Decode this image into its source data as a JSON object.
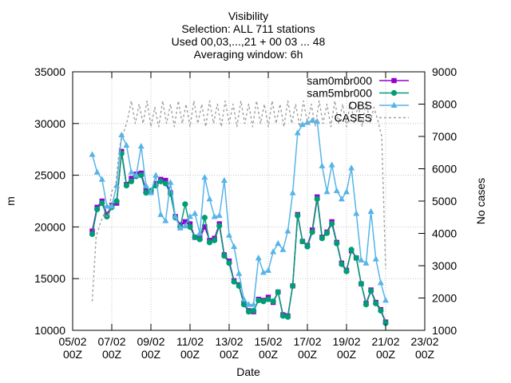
{
  "chart_data": {
    "type": "line",
    "title_lines": [
      "Visibility",
      "Selection: ALL     711 stations",
      "Used 00,03,...,21 + 00 03 ... 48",
      "Averaging window:  6h"
    ],
    "xlabel": "Date",
    "ylabel": "m",
    "y2label": "No cases",
    "xlim": [
      0,
      18
    ],
    "ylim": [
      10000,
      35000
    ],
    "y2lim": [
      1000,
      9000
    ],
    "grid": true,
    "legend_position": "top-right",
    "x_ticks": [
      {
        "value": 0,
        "line1": "05/02",
        "line2": "00Z"
      },
      {
        "value": 2,
        "line1": "07/02",
        "line2": "00Z"
      },
      {
        "value": 4,
        "line1": "09/02",
        "line2": "00Z"
      },
      {
        "value": 6,
        "line1": "11/02",
        "line2": "00Z"
      },
      {
        "value": 8,
        "line1": "13/02",
        "line2": "00Z"
      },
      {
        "value": 10,
        "line1": "15/02",
        "line2": "00Z"
      },
      {
        "value": 12,
        "line1": "17/02",
        "line2": "00Z"
      },
      {
        "value": 14,
        "line1": "19/02",
        "line2": "00Z"
      },
      {
        "value": 16,
        "line1": "21/02",
        "line2": "00Z"
      },
      {
        "value": 18,
        "line1": "23/02",
        "line2": "00Z"
      }
    ],
    "y_ticks": [
      "10000",
      "15000",
      "20000",
      "25000",
      "30000",
      "35000"
    ],
    "y_tick_values": [
      10000,
      15000,
      20000,
      25000,
      30000,
      35000
    ],
    "y2_ticks": [
      "1000",
      "2000",
      "3000",
      "4000",
      "5000",
      "6000",
      "7000",
      "8000",
      "9000"
    ],
    "y2_tick_values": [
      1000,
      2000,
      3000,
      4000,
      5000,
      6000,
      7000,
      8000,
      9000
    ],
    "series": [
      {
        "name": "sam0mbr000",
        "color": "#9400d3",
        "marker": "square",
        "axis": "y",
        "points": [
          [
            1.0,
            19600
          ],
          [
            1.25,
            21900
          ],
          [
            1.5,
            22500
          ],
          [
            1.75,
            21200
          ],
          [
            2.0,
            22100
          ],
          [
            2.25,
            22300
          ],
          [
            2.5,
            27300
          ],
          [
            2.75,
            24100
          ],
          [
            3.0,
            24700
          ],
          [
            3.25,
            25100
          ],
          [
            3.5,
            25200
          ],
          [
            3.75,
            23500
          ],
          [
            4.0,
            23400
          ],
          [
            4.25,
            24200
          ],
          [
            4.5,
            24600
          ],
          [
            4.75,
            24500
          ],
          [
            5.0,
            23300
          ],
          [
            5.25,
            21000
          ],
          [
            5.5,
            20200
          ],
          [
            5.75,
            20500
          ],
          [
            6.0,
            20300
          ],
          [
            6.25,
            19000
          ],
          [
            6.5,
            18900
          ],
          [
            6.75,
            20000
          ],
          [
            7.0,
            18700
          ],
          [
            7.25,
            18900
          ],
          [
            7.5,
            20300
          ],
          [
            7.75,
            17300
          ],
          [
            8.0,
            16700
          ],
          [
            8.25,
            14800
          ],
          [
            8.5,
            14400
          ],
          [
            8.75,
            12600
          ],
          [
            9.0,
            11900
          ],
          [
            9.25,
            11800
          ],
          [
            9.5,
            13000
          ],
          [
            9.75,
            12900
          ],
          [
            10.0,
            13200
          ],
          [
            10.25,
            12700
          ],
          [
            10.5,
            13700
          ],
          [
            10.75,
            11500
          ],
          [
            11.0,
            11400
          ],
          [
            11.25,
            14300
          ],
          [
            11.5,
            21200
          ],
          [
            11.75,
            18600
          ],
          [
            12.0,
            18200
          ],
          [
            12.25,
            19700
          ],
          [
            12.5,
            22900
          ],
          [
            12.75,
            19000
          ],
          [
            13.0,
            19500
          ],
          [
            13.25,
            20500
          ],
          [
            13.5,
            18500
          ],
          [
            13.75,
            16500
          ],
          [
            14.0,
            15800
          ],
          [
            14.25,
            17700
          ],
          [
            14.5,
            17000
          ],
          [
            14.75,
            14500
          ],
          [
            15.0,
            12600
          ],
          [
            15.25,
            13900
          ],
          [
            15.5,
            12700
          ],
          [
            15.75,
            12000
          ],
          [
            16.0,
            10800
          ]
        ]
      },
      {
        "name": "sam5mbr000",
        "color": "#009e73",
        "marker": "circle",
        "axis": "y",
        "points": [
          [
            1.0,
            19300
          ],
          [
            1.25,
            21700
          ],
          [
            1.5,
            22300
          ],
          [
            1.75,
            21000
          ],
          [
            2.0,
            21900
          ],
          [
            2.25,
            22500
          ],
          [
            2.5,
            27100
          ],
          [
            2.75,
            24000
          ],
          [
            3.0,
            24400
          ],
          [
            3.25,
            24900
          ],
          [
            3.5,
            25000
          ],
          [
            3.75,
            23300
          ],
          [
            4.0,
            23500
          ],
          [
            4.25,
            24000
          ],
          [
            4.5,
            24400
          ],
          [
            4.75,
            24200
          ],
          [
            5.0,
            23200
          ],
          [
            5.25,
            20900
          ],
          [
            5.5,
            20000
          ],
          [
            5.75,
            22200
          ],
          [
            6.0,
            20000
          ],
          [
            6.25,
            19000
          ],
          [
            6.5,
            18800
          ],
          [
            6.75,
            20900
          ],
          [
            7.0,
            18500
          ],
          [
            7.25,
            18700
          ],
          [
            7.5,
            20100
          ],
          [
            7.75,
            17200
          ],
          [
            8.0,
            16500
          ],
          [
            8.25,
            14700
          ],
          [
            8.5,
            14300
          ],
          [
            8.75,
            12500
          ],
          [
            9.0,
            11800
          ],
          [
            9.25,
            11900
          ],
          [
            9.5,
            12900
          ],
          [
            9.75,
            12800
          ],
          [
            10.0,
            13000
          ],
          [
            10.25,
            12800
          ],
          [
            10.5,
            13700
          ],
          [
            10.75,
            11400
          ],
          [
            11.0,
            11300
          ],
          [
            11.25,
            14300
          ],
          [
            11.5,
            21100
          ],
          [
            11.75,
            18600
          ],
          [
            12.0,
            18100
          ],
          [
            12.25,
            19500
          ],
          [
            12.5,
            22700
          ],
          [
            12.75,
            18900
          ],
          [
            13.0,
            19400
          ],
          [
            13.25,
            20300
          ],
          [
            13.5,
            18400
          ],
          [
            13.75,
            16400
          ],
          [
            14.0,
            15700
          ],
          [
            14.25,
            17800
          ],
          [
            14.5,
            17000
          ],
          [
            14.75,
            14500
          ],
          [
            15.0,
            12500
          ],
          [
            15.25,
            13800
          ],
          [
            15.5,
            12600
          ],
          [
            15.75,
            11900
          ],
          [
            16.0,
            10700
          ]
        ]
      },
      {
        "name": "OBS",
        "color": "#56b4e9",
        "marker": "triangle",
        "axis": "y",
        "points": [
          [
            1.0,
            27000
          ],
          [
            1.25,
            25300
          ],
          [
            1.5,
            24600
          ],
          [
            1.75,
            22000
          ],
          [
            2.0,
            22000
          ],
          [
            2.25,
            24000
          ],
          [
            2.5,
            28900
          ],
          [
            2.75,
            27900
          ],
          [
            3.0,
            25300
          ],
          [
            3.25,
            25000
          ],
          [
            3.5,
            27800
          ],
          [
            3.75,
            24000
          ],
          [
            4.0,
            23300
          ],
          [
            4.25,
            25000
          ],
          [
            4.5,
            21200
          ],
          [
            4.75,
            20600
          ],
          [
            5.0,
            24300
          ],
          [
            5.25,
            21000
          ],
          [
            5.5,
            19900
          ],
          [
            5.75,
            20100
          ],
          [
            6.0,
            21000
          ],
          [
            6.25,
            21300
          ],
          [
            6.5,
            19400
          ],
          [
            6.75,
            24800
          ],
          [
            7.0,
            22700
          ],
          [
            7.25,
            21000
          ],
          [
            7.5,
            21100
          ],
          [
            7.75,
            24500
          ],
          [
            8.0,
            19200
          ],
          [
            8.25,
            18100
          ],
          [
            8.5,
            15500
          ],
          [
            8.75,
            13000
          ],
          [
            9.0,
            12500
          ],
          [
            9.25,
            12500
          ],
          [
            9.5,
            17000
          ],
          [
            9.75,
            15600
          ],
          [
            10.0,
            15800
          ],
          [
            10.25,
            17600
          ],
          [
            10.5,
            18400
          ],
          [
            10.75,
            17800
          ],
          [
            11.0,
            19600
          ],
          [
            11.25,
            23300
          ],
          [
            11.5,
            29100
          ],
          [
            11.75,
            29900
          ],
          [
            12.0,
            30100
          ],
          [
            12.25,
            30300
          ],
          [
            12.5,
            30200
          ],
          [
            12.75,
            25900
          ],
          [
            13.0,
            23400
          ],
          [
            13.25,
            26000
          ],
          [
            13.5,
            23500
          ],
          [
            13.75,
            22700
          ],
          [
            14.0,
            23400
          ],
          [
            14.25,
            25700
          ],
          [
            14.5,
            21300
          ],
          [
            14.75,
            16800
          ],
          [
            15.0,
            16500
          ],
          [
            15.25,
            21500
          ],
          [
            15.5,
            16900
          ],
          [
            15.75,
            14600
          ],
          [
            16.0,
            12900
          ]
        ]
      },
      {
        "name": "CASES",
        "color": "#a0a0a0",
        "marker": "none",
        "axis": "y2",
        "dashed": true,
        "points": [
          [
            1.0,
            1900
          ],
          [
            1.2,
            3900
          ],
          [
            1.4,
            4300
          ],
          [
            1.6,
            4600
          ],
          [
            1.8,
            4500
          ],
          [
            2.0,
            5300
          ],
          [
            2.2,
            5500
          ],
          [
            2.4,
            6700
          ],
          [
            2.6,
            7100
          ],
          [
            2.8,
            7500
          ],
          [
            3.0,
            8100
          ],
          [
            3.2,
            7400
          ],
          [
            3.4,
            8000
          ],
          [
            3.6,
            7400
          ],
          [
            3.8,
            8100
          ],
          [
            4.0,
            7300
          ],
          [
            4.2,
            7900
          ],
          [
            4.4,
            7300
          ],
          [
            4.6,
            8100
          ],
          [
            4.8,
            7400
          ],
          [
            5.0,
            8000
          ],
          [
            5.2,
            7300
          ],
          [
            5.4,
            8100
          ],
          [
            5.6,
            7400
          ],
          [
            5.8,
            8000
          ],
          [
            6.0,
            7300
          ],
          [
            6.2,
            8100
          ],
          [
            6.4,
            7400
          ],
          [
            6.6,
            8000
          ],
          [
            6.8,
            7300
          ],
          [
            7.0,
            8100
          ],
          [
            7.2,
            7400
          ],
          [
            7.4,
            8000
          ],
          [
            7.6,
            7300
          ],
          [
            7.8,
            8100
          ],
          [
            8.0,
            7400
          ],
          [
            8.2,
            8000
          ],
          [
            8.4,
            7300
          ],
          [
            8.6,
            8100
          ],
          [
            8.8,
            7400
          ],
          [
            9.0,
            8000
          ],
          [
            9.2,
            7300
          ],
          [
            9.4,
            8100
          ],
          [
            9.6,
            7400
          ],
          [
            9.8,
            8000
          ],
          [
            10.0,
            7300
          ],
          [
            10.2,
            8100
          ],
          [
            10.4,
            7400
          ],
          [
            10.6,
            8000
          ],
          [
            10.8,
            7300
          ],
          [
            11.0,
            8100
          ],
          [
            11.2,
            7400
          ],
          [
            11.4,
            8000
          ],
          [
            11.6,
            7300
          ],
          [
            11.8,
            8100
          ],
          [
            12.0,
            7400
          ],
          [
            12.2,
            8000
          ],
          [
            12.4,
            7300
          ],
          [
            12.6,
            8100
          ],
          [
            12.8,
            7400
          ],
          [
            13.0,
            8000
          ],
          [
            13.2,
            7300
          ],
          [
            13.4,
            8100
          ],
          [
            13.6,
            7400
          ],
          [
            13.8,
            8000
          ],
          [
            14.0,
            7300
          ],
          [
            14.2,
            8100
          ],
          [
            14.4,
            7400
          ],
          [
            14.6,
            8000
          ],
          [
            14.8,
            7300
          ],
          [
            15.0,
            8100
          ],
          [
            15.2,
            7400
          ],
          [
            15.4,
            7900
          ],
          [
            15.6,
            7500
          ],
          [
            15.8,
            7000
          ],
          [
            16.0,
            2900
          ]
        ]
      }
    ]
  }
}
